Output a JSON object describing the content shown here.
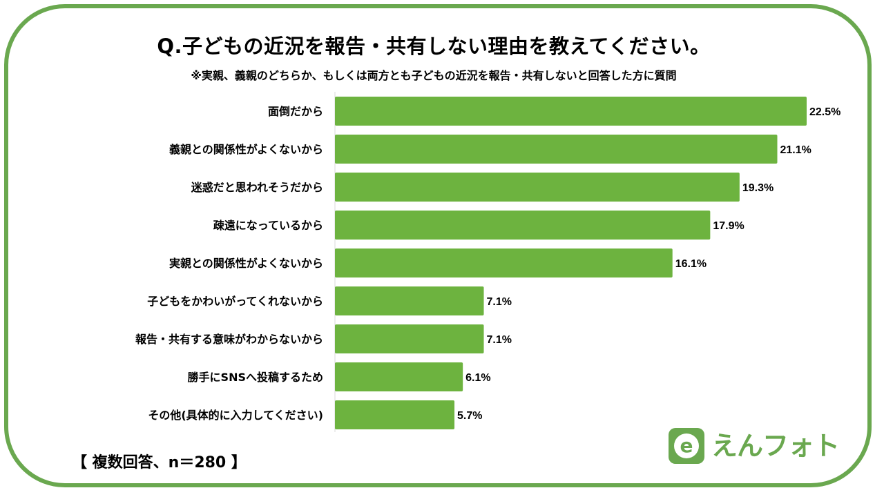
{
  "title": "Q.子どもの近況を報告・共有しない理由を教えてください。",
  "subtitle": "※実親、義親のどちらか、もしくは両方とも子どもの近況を報告・共有しないと回答した方に質問",
  "note": "【 複数回答、n＝280 】",
  "logo": {
    "mark": "e",
    "text": "えんフォト"
  },
  "colors": {
    "bar": "#6db33f",
    "frame": "#6aa84f",
    "axis": "#d9d9d9"
  },
  "chart_data": {
    "type": "bar",
    "orientation": "horizontal",
    "categories": [
      "面倒だから",
      "義親との関係性がよくないから",
      "迷惑だと思われそうだから",
      "疎遠になっているから",
      "実親との関係性がよくないから",
      "子どもをかわいがってくれないから",
      "報告・共有する意味がわからないから",
      "勝手にSNSへ投稿するため",
      "その他(具体的に入力してください)"
    ],
    "values": [
      22.5,
      21.1,
      19.3,
      17.9,
      16.1,
      7.1,
      7.1,
      6.1,
      5.7
    ],
    "value_labels": [
      "22.5%",
      "21.1%",
      "19.3%",
      "17.9%",
      "16.1%",
      "7.1%",
      "7.1%",
      "6.1%",
      "5.7%"
    ],
    "xlim": [
      0,
      25
    ],
    "grid": false
  }
}
